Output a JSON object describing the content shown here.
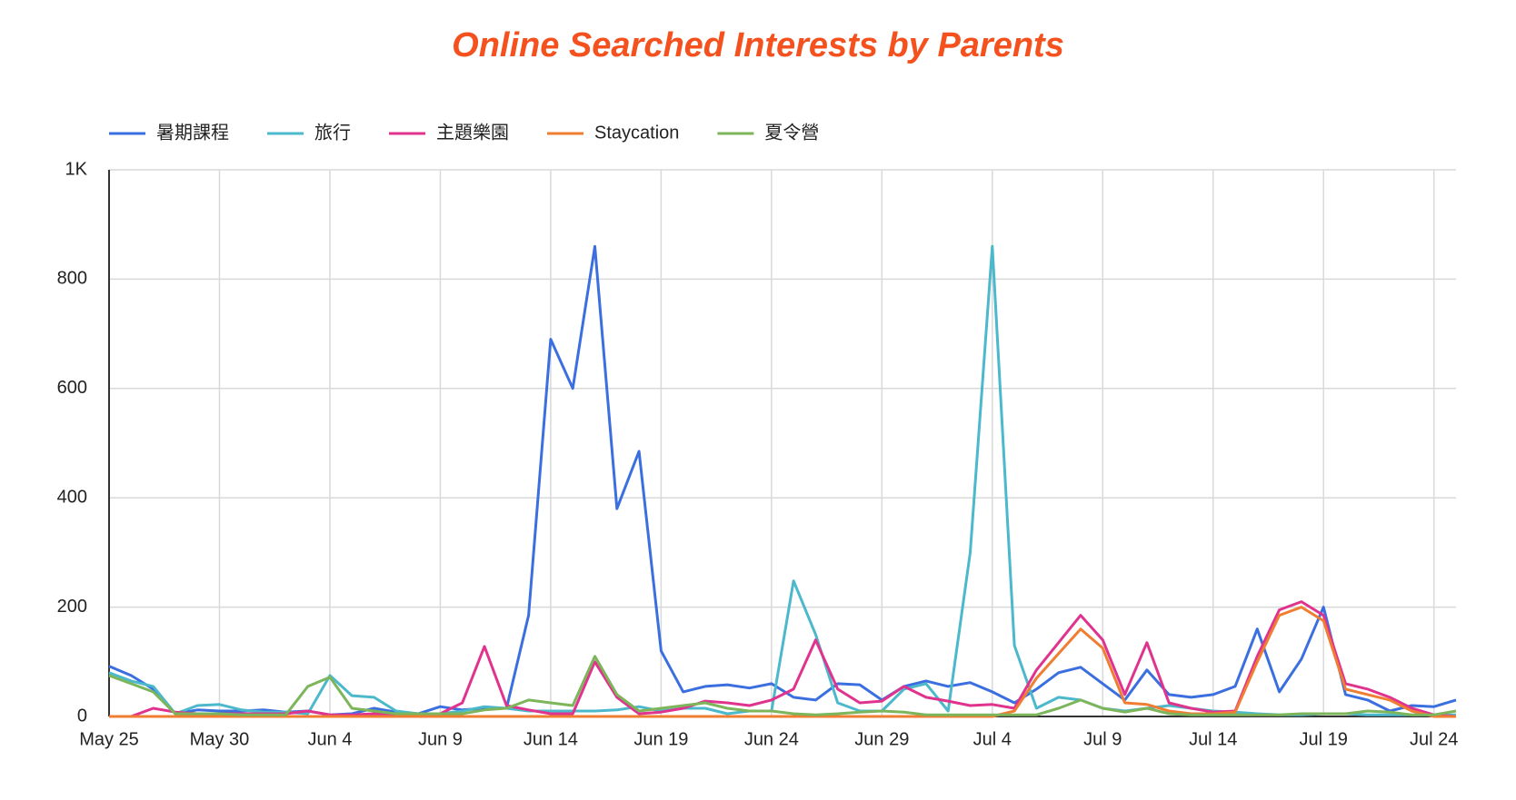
{
  "chart_data": {
    "type": "line",
    "title": "Online Searched Interests by Parents",
    "categories": [
      "May 25",
      null,
      null,
      null,
      null,
      "May 30",
      null,
      null,
      null,
      null,
      "Jun 4",
      null,
      null,
      null,
      null,
      "Jun 9",
      null,
      null,
      null,
      null,
      "Jun 14",
      null,
      null,
      null,
      null,
      "Jun 19",
      null,
      null,
      null,
      null,
      "Jun 24",
      null,
      null,
      null,
      null,
      "Jun 29",
      null,
      null,
      null,
      null,
      "Jul 4",
      null,
      null,
      null,
      null,
      "Jul 9",
      null,
      null,
      null,
      null,
      "Jul 14",
      null,
      null,
      null,
      null,
      "Jul 19",
      null,
      null,
      null,
      null,
      "Jul 24",
      null
    ],
    "series": [
      {
        "name": "暑期課程",
        "color": "#3b6fe0",
        "values": [
          92,
          75,
          50,
          5,
          12,
          10,
          10,
          12,
          8,
          10,
          3,
          5,
          15,
          8,
          5,
          18,
          12,
          15,
          15,
          185,
          690,
          600,
          860,
          380,
          485,
          120,
          45,
          55,
          58,
          52,
          60,
          35,
          30,
          60,
          58,
          30,
          55,
          65,
          55,
          62,
          45,
          25,
          50,
          80,
          90,
          60,
          30,
          85,
          40,
          35,
          40,
          55,
          160,
          45,
          105,
          200,
          40,
          30,
          10,
          20,
          18,
          30
        ]
      },
      {
        "name": "旅行",
        "color": "#4bb8cc",
        "values": [
          80,
          65,
          55,
          5,
          20,
          22,
          12,
          8,
          8,
          5,
          75,
          38,
          35,
          10,
          5,
          5,
          10,
          18,
          15,
          10,
          10,
          10,
          10,
          12,
          18,
          10,
          15,
          15,
          5,
          10,
          10,
          248,
          150,
          25,
          10,
          10,
          50,
          60,
          10,
          300,
          860,
          130,
          15,
          35,
          30,
          15,
          10,
          15,
          20,
          15,
          10,
          8,
          5,
          3,
          3,
          5,
          5,
          3,
          3,
          3,
          3,
          3
        ]
      },
      {
        "name": "主題樂園",
        "color": "#e0338e",
        "values": [
          0,
          0,
          15,
          8,
          5,
          5,
          5,
          5,
          5,
          10,
          3,
          3,
          5,
          5,
          5,
          5,
          25,
          128,
          20,
          12,
          5,
          5,
          100,
          35,
          5,
          8,
          15,
          28,
          25,
          20,
          30,
          50,
          140,
          50,
          25,
          28,
          55,
          35,
          28,
          20,
          22,
          15,
          85,
          135,
          185,
          140,
          40,
          135,
          25,
          15,
          8,
          10,
          110,
          195,
          210,
          185,
          60,
          50,
          35,
          15,
          3,
          0
        ]
      },
      {
        "name": "Staycation",
        "color": "#ef7d32",
        "values": [
          0,
          0,
          0,
          0,
          0,
          0,
          0,
          0,
          0,
          0,
          0,
          0,
          0,
          0,
          0,
          0,
          0,
          0,
          0,
          0,
          0,
          0,
          0,
          0,
          0,
          0,
          0,
          0,
          0,
          0,
          0,
          0,
          0,
          0,
          0,
          0,
          0,
          0,
          0,
          0,
          0,
          10,
          70,
          115,
          160,
          125,
          25,
          22,
          10,
          5,
          5,
          8,
          100,
          185,
          200,
          175,
          50,
          40,
          30,
          10,
          0,
          0
        ]
      },
      {
        "name": "夏令營",
        "color": "#7cb55a",
        "values": [
          75,
          60,
          45,
          5,
          5,
          5,
          3,
          3,
          3,
          55,
          72,
          15,
          10,
          5,
          5,
          5,
          5,
          12,
          15,
          30,
          25,
          20,
          110,
          40,
          10,
          15,
          20,
          25,
          15,
          10,
          10,
          5,
          3,
          5,
          8,
          10,
          8,
          3,
          3,
          3,
          3,
          3,
          3,
          15,
          30,
          15,
          8,
          15,
          5,
          3,
          3,
          3,
          3,
          3,
          5,
          5,
          5,
          10,
          8,
          3,
          3,
          10
        ]
      }
    ],
    "ylim": [
      0,
      1000
    ],
    "yticks": [
      0,
      200,
      400,
      600,
      800,
      {
        "value": 1000,
        "label": "1K"
      }
    ],
    "grid": true
  }
}
